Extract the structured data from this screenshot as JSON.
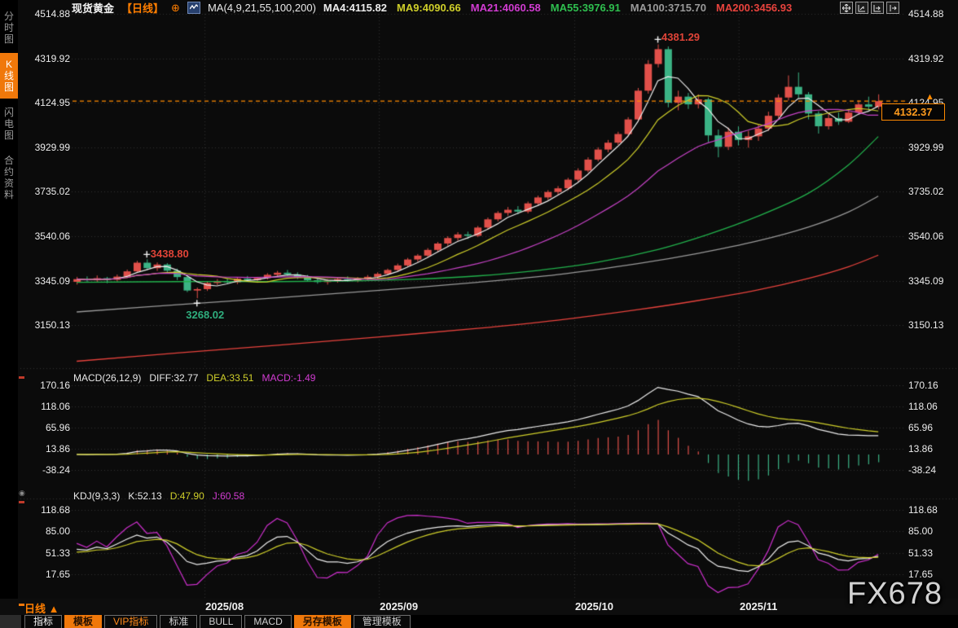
{
  "header": {
    "symbol": "现货黄金",
    "period_tag": "【日线】",
    "expand_icon": "⊕",
    "ma_settings": "MA(4,9,21,55,100,200)",
    "ma_values": [
      {
        "label": "MA4:4115.82",
        "color": "#ececec"
      },
      {
        "label": "MA9:4090.66",
        "color": "#cfcf2a"
      },
      {
        "label": "MA21:4060.58",
        "color": "#d23cd2"
      },
      {
        "label": "MA55:3976.91",
        "color": "#2fbf4f"
      },
      {
        "label": "MA100:3715.70",
        "color": "#9a9a9a"
      },
      {
        "label": "MA200:3456.93",
        "color": "#e8433d"
      }
    ],
    "tool_icons": [
      "move-tool-icon",
      "axis-scale-icon",
      "axis-pan-icon",
      "snapshot-icon"
    ]
  },
  "sidebar": {
    "items": [
      {
        "label": "分时图",
        "active": false
      },
      {
        "label": "K线图",
        "active": true
      },
      {
        "label": "闪电图",
        "active": false
      },
      {
        "label": "合约资料",
        "active": false
      }
    ]
  },
  "panes": {
    "main": {
      "axis_labels": [
        "4514.88",
        "4319.92",
        "4124.95",
        "3929.99",
        "3735.02",
        "3540.06",
        "3345.09",
        "3150.13"
      ]
    },
    "macd": {
      "title": "MACD(26,12,9)",
      "diff_label": "DIFF:32.77",
      "dea_label": "DEA:33.51",
      "macd_label": "MACD:-1.49",
      "axis_labels": [
        "170.16",
        "118.06",
        "65.96",
        "13.86",
        "-38.24"
      ]
    },
    "kdj": {
      "title": "KDJ(9,3,3)",
      "k_label": "K:52.13",
      "d_label": "D:47.90",
      "j_label": "J:60.58",
      "axis_labels": [
        "118.68",
        "85.00",
        "51.33",
        "17.65"
      ]
    }
  },
  "annotations": {
    "peak": "4381.29",
    "swing_high": "3438.80",
    "swing_low": "3268.02",
    "current_price": "4132.37",
    "arrow": "▲"
  },
  "x_axis": {
    "period_label": "日线",
    "period_arrow": "▲"
  },
  "bottom_tabs": [
    {
      "label": "指标",
      "style": "bright"
    },
    {
      "label": "模板",
      "style": "active"
    },
    {
      "label": "VIP指标",
      "style": "orange"
    },
    {
      "label": "标准",
      "style": "plain"
    },
    {
      "label": "BULL",
      "style": "plain"
    },
    {
      "label": "MACD",
      "style": "plain"
    },
    {
      "label": "另存模板",
      "style": "active"
    },
    {
      "label": "管理模板",
      "style": "plain"
    }
  ],
  "watermark": "FX678",
  "colors": {
    "up": "#e1504a",
    "down": "#3bb385",
    "accent": "#ff7e00",
    "price_line": "#ff8a00",
    "ma4": "#ececec",
    "ma9": "#cfcf2a",
    "ma21": "#c743c7",
    "ma55": "#22b14c",
    "ma100": "#9a9a9a",
    "ma200": "#e8433d",
    "grid": "rgba(255,255,255,0.16)",
    "marker": "#f5f5f5",
    "kdj_k": "#ececec",
    "kdj_d": "#cfcf2a",
    "kdj_j": "#cc2fcc"
  },
  "chart_data": {
    "type": "candlestick",
    "symbol": "现货黄金",
    "interval": "日线",
    "main_ylim": [
      3150.13,
      4514.88
    ],
    "macd_ylim": [
      -38.24,
      170.16
    ],
    "kdj_ylim": [
      17.65,
      118.68
    ],
    "current_price": 4132.37,
    "ma_windows": [
      4,
      9,
      21
    ],
    "months": [
      {
        "label": "2025/08",
        "index": 12.8
      },
      {
        "label": "2025/09",
        "index": 30.2
      },
      {
        "label": "2025/10",
        "index": 49.7
      },
      {
        "label": "2025/11",
        "index": 66.1
      }
    ],
    "markers": [
      {
        "index": 7,
        "type": "high",
        "text": "3438.80",
        "value": 3438.8
      },
      {
        "index": 12,
        "type": "low",
        "text": "3268.02",
        "value": 3268.02
      },
      {
        "index": 58,
        "type": "high",
        "text": "4381.29",
        "value": 4381.29
      }
    ],
    "candles": [
      [
        3340,
        3362,
        3328,
        3352
      ],
      [
        3352,
        3364,
        3338,
        3347
      ],
      [
        3347,
        3368,
        3340,
        3356
      ],
      [
        3356,
        3362,
        3334,
        3349
      ],
      [
        3349,
        3372,
        3342,
        3363
      ],
      [
        3363,
        3394,
        3356,
        3386
      ],
      [
        3386,
        3432,
        3380,
        3424
      ],
      [
        3424,
        3438.8,
        3392,
        3400
      ],
      [
        3400,
        3425,
        3388,
        3416
      ],
      [
        3416,
        3422,
        3378,
        3389
      ],
      [
        3389,
        3398,
        3348,
        3361
      ],
      [
        3361,
        3368,
        3295,
        3302
      ],
      [
        3302,
        3315,
        3268.02,
        3308
      ],
      [
        3308,
        3342,
        3300,
        3335
      ],
      [
        3335,
        3352,
        3326,
        3344
      ],
      [
        3344,
        3356,
        3332,
        3338
      ],
      [
        3338,
        3360,
        3330,
        3354
      ],
      [
        3354,
        3366,
        3342,
        3348
      ],
      [
        3348,
        3362,
        3336,
        3357
      ],
      [
        3357,
        3378,
        3350,
        3371
      ],
      [
        3371,
        3388,
        3362,
        3380
      ],
      [
        3380,
        3392,
        3366,
        3373
      ],
      [
        3373,
        3382,
        3352,
        3360
      ],
      [
        3360,
        3370,
        3340,
        3347
      ],
      [
        3347,
        3358,
        3332,
        3339
      ],
      [
        3339,
        3352,
        3328,
        3346
      ],
      [
        3346,
        3360,
        3336,
        3352
      ],
      [
        3352,
        3364,
        3340,
        3347
      ],
      [
        3347,
        3361,
        3338,
        3355
      ],
      [
        3355,
        3370,
        3346,
        3362
      ],
      [
        3362,
        3382,
        3354,
        3375
      ],
      [
        3375,
        3398,
        3368,
        3392
      ],
      [
        3392,
        3420,
        3385,
        3412
      ],
      [
        3412,
        3445,
        3405,
        3438
      ],
      [
        3438,
        3462,
        3428,
        3455
      ],
      [
        3455,
        3488,
        3446,
        3480
      ],
      [
        3480,
        3515,
        3472,
        3508
      ],
      [
        3508,
        3540,
        3498,
        3532
      ],
      [
        3532,
        3558,
        3520,
        3548
      ],
      [
        3548,
        3560,
        3528,
        3542
      ],
      [
        3542,
        3585,
        3536,
        3578
      ],
      [
        3578,
        3622,
        3570,
        3614
      ],
      [
        3614,
        3650,
        3605,
        3642
      ],
      [
        3642,
        3668,
        3630,
        3656
      ],
      [
        3656,
        3672,
        3636,
        3648
      ],
      [
        3648,
        3692,
        3640,
        3684
      ],
      [
        3684,
        3718,
        3676,
        3710
      ],
      [
        3710,
        3742,
        3700,
        3734
      ],
      [
        3734,
        3760,
        3722,
        3750
      ],
      [
        3750,
        3796,
        3742,
        3788
      ],
      [
        3788,
        3838,
        3780,
        3828
      ],
      [
        3828,
        3886,
        3820,
        3876
      ],
      [
        3876,
        3930,
        3868,
        3920
      ],
      [
        3920,
        3962,
        3908,
        3950
      ],
      [
        3950,
        3998,
        3940,
        3988
      ],
      [
        3988,
        4062,
        3980,
        4052
      ],
      [
        4052,
        4190,
        4042,
        4178
      ],
      [
        4178,
        4312,
        4165,
        4295
      ],
      [
        4295,
        4381.29,
        4280,
        4360
      ],
      [
        4360,
        4372,
        4105,
        4125
      ],
      [
        4125,
        4178,
        4092,
        4152
      ],
      [
        4152,
        4168,
        4098,
        4118
      ],
      [
        4118,
        4162,
        4100,
        4140
      ],
      [
        4140,
        4148,
        3952,
        3982
      ],
      [
        3982,
        4008,
        3886,
        3932
      ],
      [
        3932,
        4016,
        3918,
        3998
      ],
      [
        3998,
        4022,
        3938,
        3962
      ],
      [
        3962,
        4002,
        3928,
        3978
      ],
      [
        3978,
        4032,
        3958,
        4012
      ],
      [
        4012,
        4086,
        4002,
        4068
      ],
      [
        4068,
        4162,
        4058,
        4148
      ],
      [
        4148,
        4245,
        4135,
        4195
      ],
      [
        4195,
        4258,
        4145,
        4162
      ],
      [
        4162,
        4172,
        4052,
        4078
      ],
      [
        4078,
        4088,
        3990,
        4022
      ],
      [
        4022,
        4076,
        4008,
        4058
      ],
      [
        4058,
        4082,
        4028,
        4042
      ],
      [
        4042,
        4098,
        4036,
        4082
      ],
      [
        4082,
        4136,
        4072,
        4118
      ],
      [
        4118,
        4152,
        4088,
        4108
      ],
      [
        4108,
        4162,
        4096,
        4132.37
      ]
    ],
    "ma_overlays": [
      {
        "name": "MA55",
        "color_key": "ma55",
        "points": [
          [
            0,
            3338
          ],
          [
            10,
            3341
          ],
          [
            20,
            3341
          ],
          [
            28,
            3344
          ],
          [
            34,
            3352
          ],
          [
            40,
            3366
          ],
          [
            46,
            3390
          ],
          [
            52,
            3426
          ],
          [
            58,
            3482
          ],
          [
            63,
            3548
          ],
          [
            68,
            3628
          ],
          [
            73,
            3728
          ],
          [
            77,
            3852
          ],
          [
            80,
            3977
          ]
        ]
      },
      {
        "name": "MA100",
        "color_key": "ma100",
        "points": [
          [
            0,
            3208
          ],
          [
            10,
            3240
          ],
          [
            20,
            3270
          ],
          [
            30,
            3302
          ],
          [
            40,
            3338
          ],
          [
            48,
            3372
          ],
          [
            56,
            3420
          ],
          [
            62,
            3465
          ],
          [
            68,
            3520
          ],
          [
            73,
            3580
          ],
          [
            77,
            3646
          ],
          [
            80,
            3716
          ]
        ]
      },
      {
        "name": "MA200",
        "color_key": "ma200",
        "points": [
          [
            0,
            2992
          ],
          [
            10,
            3028
          ],
          [
            20,
            3062
          ],
          [
            30,
            3098
          ],
          [
            40,
            3136
          ],
          [
            48,
            3172
          ],
          [
            56,
            3218
          ],
          [
            62,
            3258
          ],
          [
            68,
            3305
          ],
          [
            73,
            3355
          ],
          [
            77,
            3406
          ],
          [
            80,
            3457
          ]
        ]
      }
    ],
    "macd_params": [
      26,
      12,
      9
    ],
    "kdj_params": [
      9,
      3,
      3
    ]
  }
}
